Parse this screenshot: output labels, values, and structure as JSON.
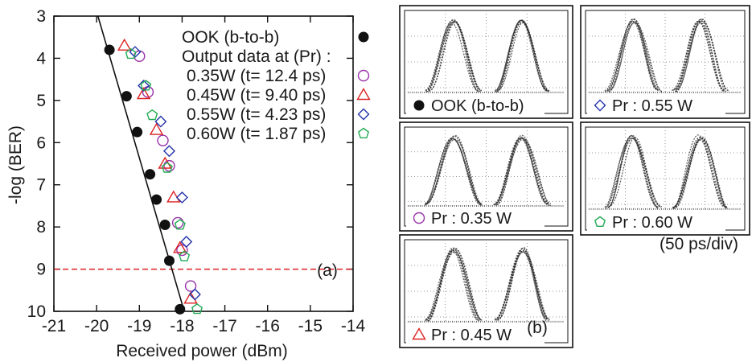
{
  "chart_data": [
    {
      "panel": "(a)",
      "type": "scatter",
      "xlabel": "Received power (dBm)",
      "ylabel": "-log (BER)",
      "xlim": [
        -21,
        -14
      ],
      "ylim": [
        3,
        10
      ],
      "y_inverted": true,
      "xticks": [
        "-21",
        "-20",
        "-19",
        "-18",
        "-17",
        "-16",
        "-15",
        "-14"
      ],
      "yticks": [
        "3",
        "4",
        "5",
        "6",
        "7",
        "8",
        "9",
        "10"
      ],
      "legend_placement": "top-right",
      "legend_subheader": "Output data at (Pr) :",
      "series": [
        {
          "name": "OOK (b-to-b)",
          "marker": "filled-circle",
          "color": "#111111",
          "points": [
            [
              -19.7,
              3.8
            ],
            [
              -19.3,
              4.9
            ],
            [
              -19.05,
              5.75
            ],
            [
              -18.75,
              6.75
            ],
            [
              -18.6,
              7.35
            ],
            [
              -18.4,
              7.95
            ],
            [
              -18.3,
              8.8
            ],
            [
              -18.05,
              9.95
            ]
          ]
        },
        {
          "name": "0.35W (t= 12.4 ps)",
          "marker": "open-circle",
          "color": "#9933aa",
          "points": [
            [
              -19.0,
              3.95
            ],
            [
              -18.8,
              4.8
            ],
            [
              -18.45,
              5.95
            ],
            [
              -18.3,
              6.55
            ],
            [
              -18.1,
              7.9
            ],
            [
              -18.0,
              8.55
            ],
            [
              -17.8,
              9.4
            ]
          ]
        },
        {
          "name": "0.45W (t= 9.40 ps)",
          "marker": "open-triangle",
          "color": "#dd2222",
          "points": [
            [
              -19.35,
              3.7
            ],
            [
              -18.9,
              4.85
            ],
            [
              -18.6,
              5.7
            ],
            [
              -18.4,
              6.5
            ],
            [
              -18.2,
              7.3
            ],
            [
              -18.05,
              8.5
            ],
            [
              -17.8,
              9.7
            ]
          ]
        },
        {
          "name": "0.55W (t= 4.23 ps)",
          "marker": "open-diamond",
          "color": "#2233aa",
          "points": [
            [
              -19.1,
              3.85
            ],
            [
              -18.9,
              4.65
            ],
            [
              -18.5,
              5.5
            ],
            [
              -18.3,
              6.2
            ],
            [
              -18.0,
              7.3
            ],
            [
              -17.9,
              8.35
            ],
            [
              -17.7,
              9.6
            ]
          ]
        },
        {
          "name": "0.60W (t= 1.87 ps)",
          "marker": "open-pentagon",
          "color": "#22aa55",
          "points": [
            [
              -19.2,
              3.9
            ],
            [
              -18.85,
              4.65
            ],
            [
              -18.7,
              5.35
            ],
            [
              -18.35,
              6.6
            ],
            [
              -18.05,
              7.95
            ],
            [
              -17.95,
              8.7
            ],
            [
              -17.65,
              9.95
            ]
          ]
        }
      ],
      "fit_line": {
        "x1": -19.97,
        "y1": 3.0,
        "x2": -17.95,
        "y2": 10.0,
        "color": "#111111"
      },
      "threshold_line": {
        "y": 9.0,
        "color": "#dd2222",
        "style": "dashed"
      },
      "annotations": [
        "(a)"
      ]
    },
    {
      "panel": "(b)",
      "type": "eye-diagrams",
      "annotation": "(b)",
      "time_scale": "(50 ps/div)",
      "eyes": [
        {
          "label": "OOK (b-to-b)",
          "marker": "filled-circle",
          "color": "#111111"
        },
        {
          "label": "Pr : 0.55 W",
          "marker": "open-diamond",
          "color": "#2233aa"
        },
        {
          "label": "Pr : 0.35 W",
          "marker": "open-circle",
          "color": "#9933aa"
        },
        {
          "label": "Pr : 0.60 W",
          "marker": "open-pentagon",
          "color": "#22aa55"
        },
        {
          "label": "Pr : 0.45 W",
          "marker": "open-triangle",
          "color": "#dd2222"
        }
      ]
    }
  ]
}
